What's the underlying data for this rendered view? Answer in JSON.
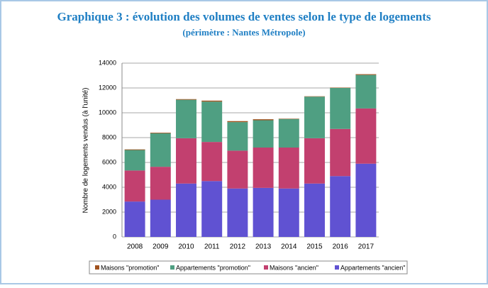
{
  "chart_data": {
    "type": "stacked-bar",
    "title": "Graphique 3 : évolution des volumes de ventes selon le type de logements",
    "subtitle": "(périmètre : Nantes Métropole)",
    "y_label": "Nombre de logements vendus (à l'unité)",
    "categories": [
      "2008",
      "2009",
      "2010",
      "2011",
      "2012",
      "2013",
      "2014",
      "2015",
      "2016",
      "2017"
    ],
    "series": [
      {
        "name": "Appartements \"ancien\"",
        "color": "#6052d2",
        "values": [
          2850,
          3000,
          4300,
          4500,
          3900,
          3950,
          3900,
          4300,
          4900,
          5900
        ]
      },
      {
        "name": "Maisons \"ancien\"",
        "color": "#c2406f",
        "values": [
          2500,
          2650,
          3650,
          3150,
          3050,
          3250,
          3300,
          3650,
          3800,
          4450
        ]
      },
      {
        "name": "Appartements \"promotion\"",
        "color": "#4f9f82",
        "values": [
          1650,
          2700,
          3100,
          3250,
          2300,
          2200,
          2300,
          3350,
          3300,
          2700
        ]
      },
      {
        "name": "Maisons \"promotion\"",
        "color": "#a0521e",
        "values": [
          50,
          50,
          50,
          80,
          80,
          80,
          30,
          30,
          30,
          60
        ]
      }
    ],
    "ylim": [
      0,
      14000
    ],
    "yticks": [
      0,
      2000,
      4000,
      6000,
      8000,
      10000,
      12000,
      14000
    ],
    "grid": true,
    "legend": "bottom"
  }
}
